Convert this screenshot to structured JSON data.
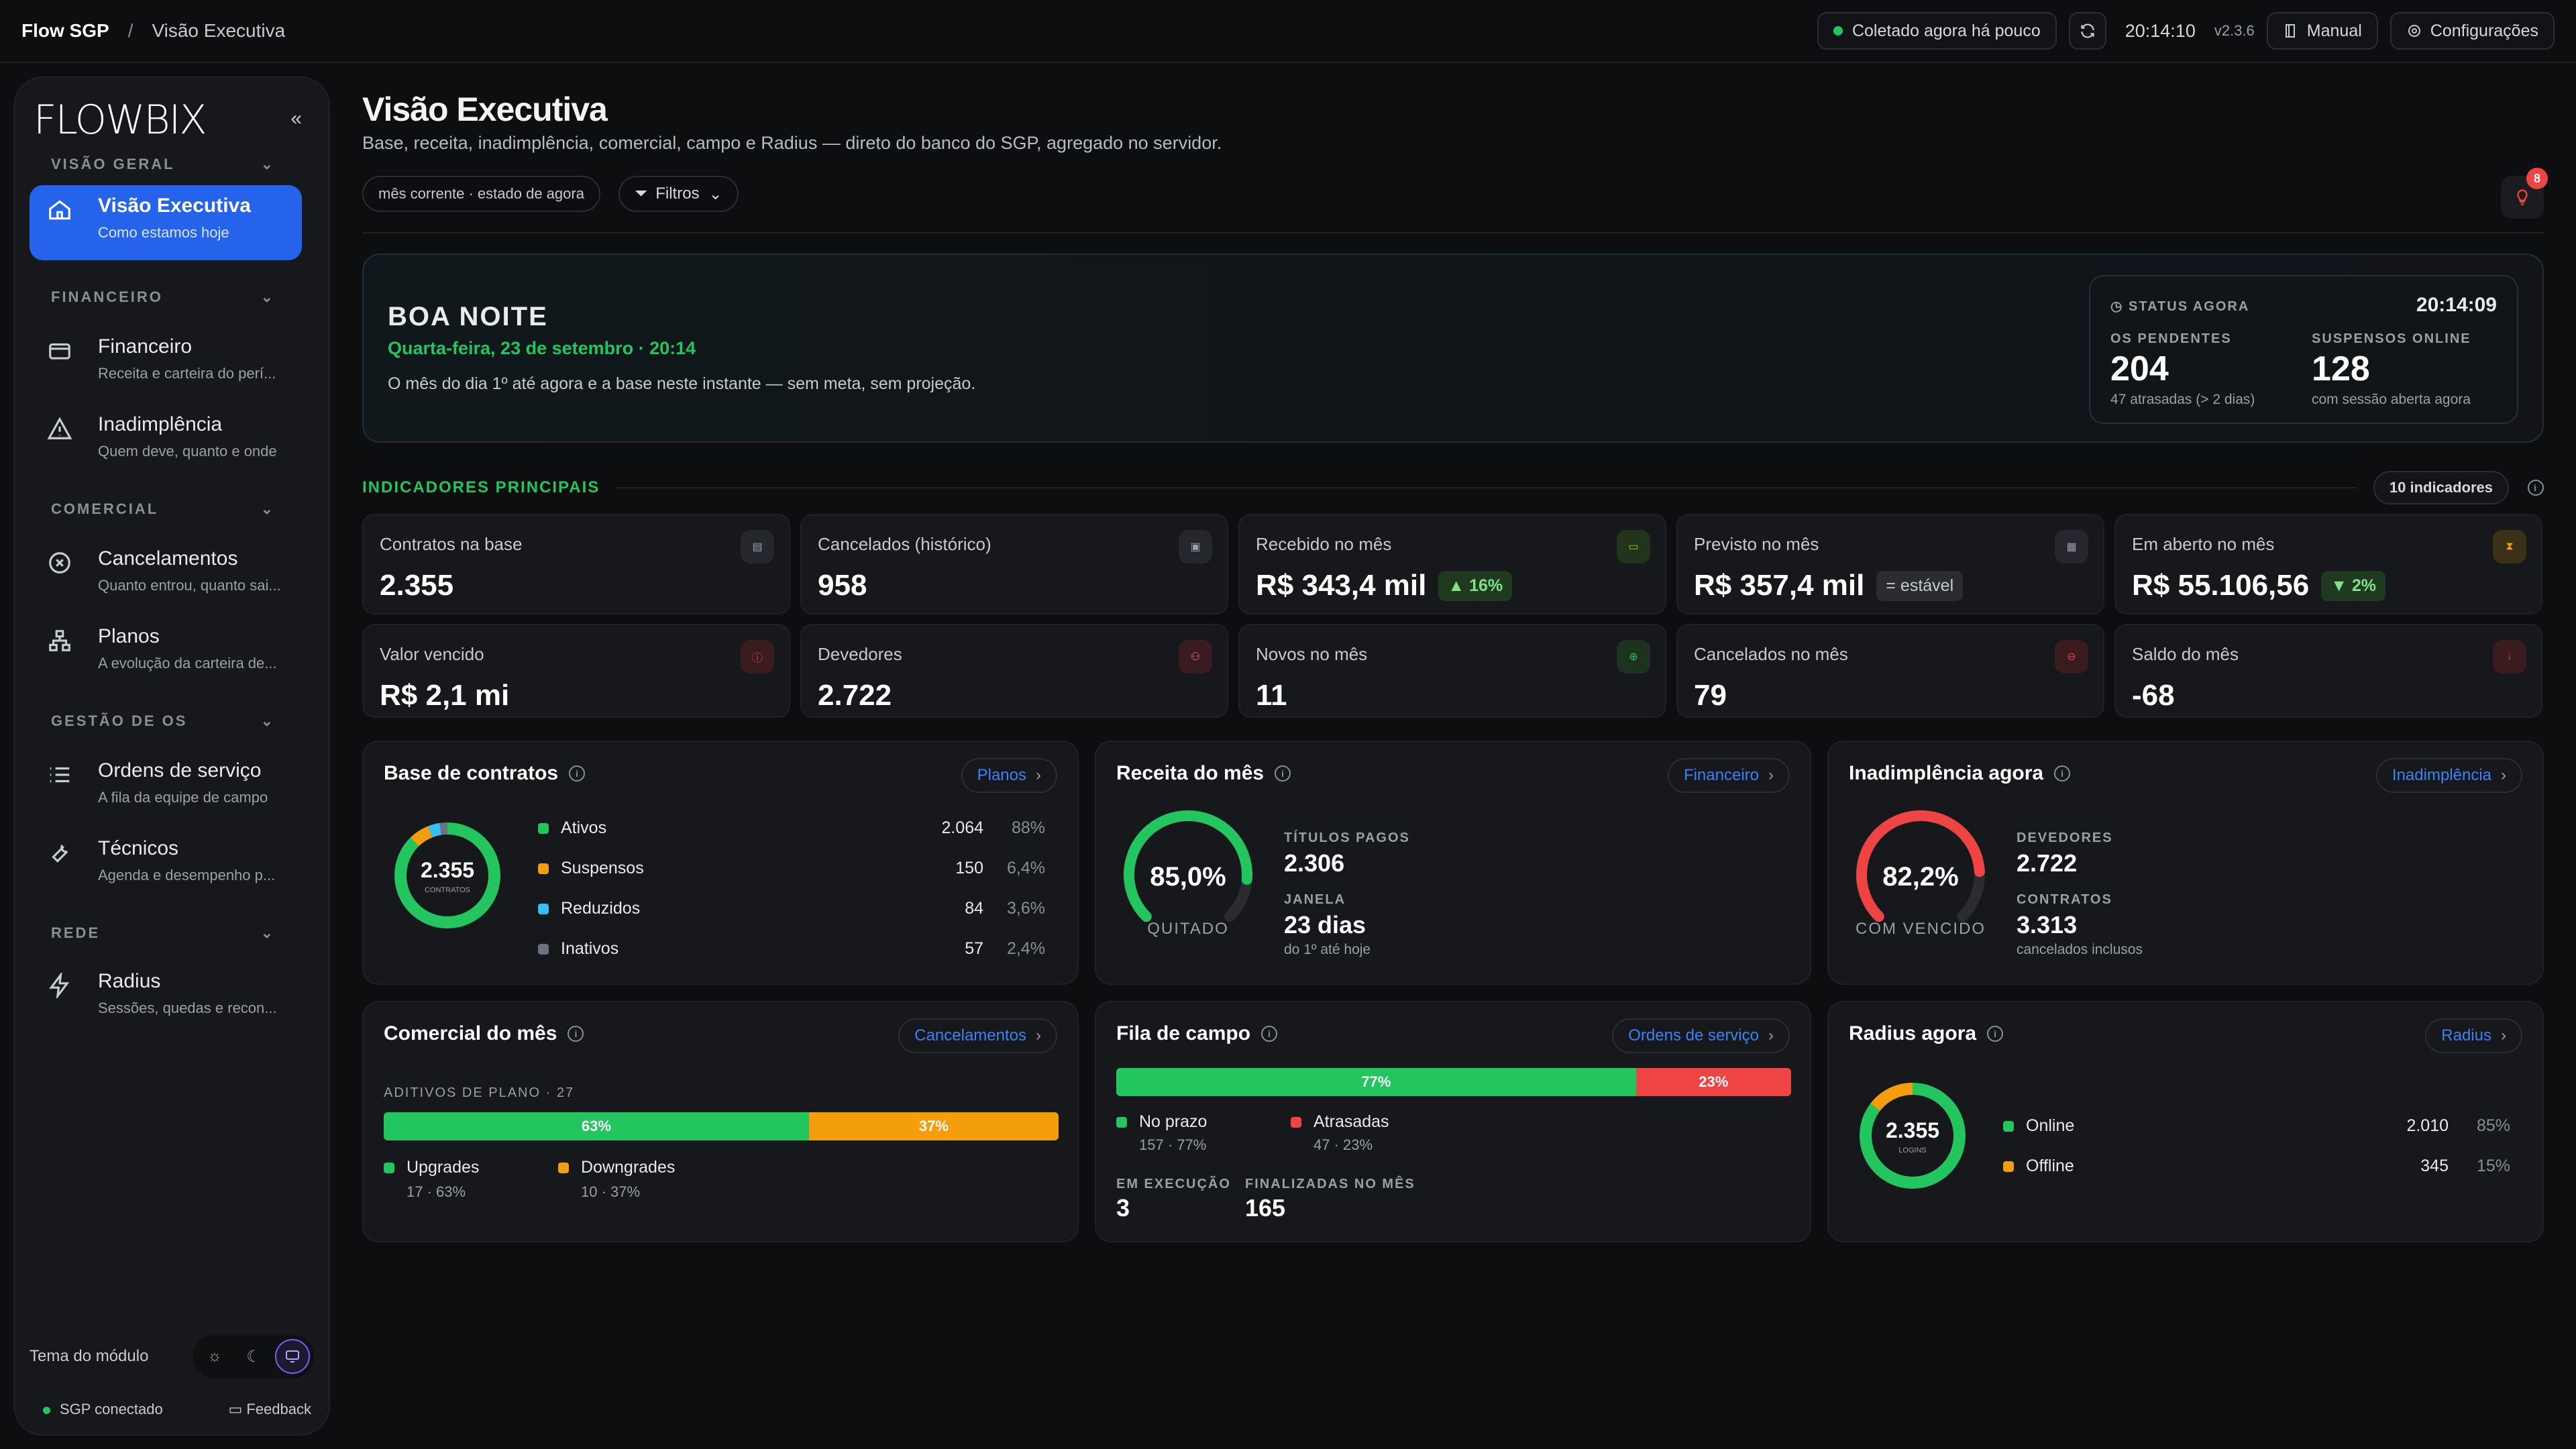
{
  "topbar": {
    "app": "Flow SGP",
    "separator": "/",
    "page": "Visão Executiva",
    "collected": "Coletado agora há pouco",
    "clock": "20:14:10",
    "version": "v2.3.6",
    "manual": "Manual",
    "settings": "Configurações"
  },
  "sidebar": {
    "logo": "FLOWBIX",
    "collapse": "«",
    "sections": {
      "visao": "VISÃO GERAL",
      "financeiro": "FINANCEIRO",
      "comercial": "COMERCIAL",
      "gestao": "GESTÃO DE OS",
      "rede": "REDE"
    },
    "items": [
      {
        "label": "Visão Executiva",
        "sub": "Como estamos hoje"
      },
      {
        "label": "Financeiro",
        "sub": "Receita e carteira do perí..."
      },
      {
        "label": "Inadimplência",
        "sub": "Quem deve, quanto e onde"
      },
      {
        "label": "Cancelamentos",
        "sub": "Quanto entrou, quanto sai..."
      },
      {
        "label": "Planos",
        "sub": "A evolução da carteira de..."
      },
      {
        "label": "Ordens de serviço",
        "sub": "A fila da equipe de campo"
      },
      {
        "label": "Técnicos",
        "sub": "Agenda e desempenho p..."
      },
      {
        "label": "Radius",
        "sub": "Sessões, quedas e recon..."
      }
    ],
    "theme_label": "Tema do módulo",
    "connected": "SGP conectado",
    "feedback": "Feedback"
  },
  "page": {
    "title": "Visão Executiva",
    "subtitle": "Base, receita, inadimplência, comercial, campo e Radius — direto do banco do SGP, agregado no servidor.",
    "period_chip": "mês corrente · estado de agora",
    "filters": "Filtros",
    "notif_count": "8"
  },
  "hero": {
    "greeting": "BOA NOITE",
    "date": "Quarta-feira, 23 de setembro · 20:14",
    "desc": "O mês do dia 1º até agora e a base neste instante — sem meta, sem projeção.",
    "status_label": "STATUS AGORA",
    "status_time": "20:14:09",
    "os_label": "OS PENDENTES",
    "os_value": "204",
    "os_sub": "47 atrasadas (> 2 dias)",
    "susp_label": "SUSPENSOS ONLINE",
    "susp_value": "128",
    "susp_sub": "com sessão aberta agora"
  },
  "indicators": {
    "title": "INDICADORES PRINCIPAIS",
    "count": "10 indicadores"
  },
  "kpis": [
    {
      "label": "Contratos na base",
      "value": "2.355",
      "tag": ""
    },
    {
      "label": "Cancelados (histórico)",
      "value": "958",
      "tag": ""
    },
    {
      "label": "Recebido no mês",
      "value": "R$ 343,4 mil",
      "tag": "▲ 16%"
    },
    {
      "label": "Previsto no mês",
      "value": "R$ 357,4 mil",
      "tag": "= estável"
    },
    {
      "label": "Em aberto no mês",
      "value": "R$ 55.106,56",
      "tag": "▼ 2%"
    },
    {
      "label": "Valor vencido",
      "value": "R$ 2,1 mi",
      "tag": ""
    },
    {
      "label": "Devedores",
      "value": "2.722",
      "tag": ""
    },
    {
      "label": "Novos no mês",
      "value": "11",
      "tag": ""
    },
    {
      "label": "Cancelados no mês",
      "value": "79",
      "tag": ""
    },
    {
      "label": "Saldo do mês",
      "value": "-68",
      "tag": ""
    }
  ],
  "base": {
    "title": "Base de contratos",
    "link": "Planos",
    "center": "2.355",
    "center_sub": "CONTRATOS",
    "rows": [
      {
        "name": "Ativos",
        "value": "2.064",
        "pct": "88%",
        "color": "#22c55e"
      },
      {
        "name": "Suspensos",
        "value": "150",
        "pct": "6,4%",
        "color": "#f59e0b"
      },
      {
        "name": "Reduzidos",
        "value": "84",
        "pct": "3,6%",
        "color": "#38bdf8"
      },
      {
        "name": "Inativos",
        "value": "57",
        "pct": "2,4%",
        "color": "#6b7280"
      }
    ]
  },
  "receita": {
    "title": "Receita do mês",
    "link": "Financeiro",
    "gauge": "85,0%",
    "gauge_fraction": 0.85,
    "gauge_label": "QUITADO",
    "m1_label": "TÍTULOS PAGOS",
    "m1_value": "2.306",
    "m2_label": "JANELA",
    "m2_value": "23 dias",
    "m2_sub": "do 1º até hoje"
  },
  "inad": {
    "title": "Inadimplência agora",
    "link": "Inadimplência",
    "gauge": "82,2%",
    "gauge_fraction": 0.822,
    "gauge_label": "COM VENCIDO",
    "m1_label": "DEVEDORES",
    "m1_value": "2.722",
    "m2_label": "CONTRATOS",
    "m2_value": "3.313",
    "m2_sub": "cancelados inclusos"
  },
  "comercial": {
    "title": "Comercial do mês",
    "link": "Cancelamentos",
    "label": "ADITIVOS DE PLANO · 27",
    "up_pct": "63%",
    "down_pct": "37%",
    "up_name": "Upgrades",
    "up_sub": "17 · 63%",
    "down_name": "Downgrades",
    "down_sub": "10 · 37%"
  },
  "fila": {
    "title": "Fila de campo",
    "link": "Ordens de serviço",
    "ok_pct": "77%",
    "late_pct": "23%",
    "ok_name": "No prazo",
    "ok_sub": "157 · 77%",
    "late_name": "Atrasadas",
    "late_sub": "47 · 23%",
    "exec_label": "EM EXECUÇÃO",
    "exec_value": "3",
    "done_label": "FINALIZADAS NO MÊS",
    "done_value": "165"
  },
  "radius": {
    "title": "Radius agora",
    "link": "Radius",
    "center": "2.355",
    "center_sub": "LOGINS",
    "rows": [
      {
        "name": "Online",
        "value": "2.010",
        "pct": "85%",
        "color": "#22c55e"
      },
      {
        "name": "Offline",
        "value": "345",
        "pct": "15%",
        "color": "#f59e0b"
      }
    ]
  },
  "colors": {
    "accent": "#2563eb",
    "green": "#22c55e",
    "amber": "#f59e0b",
    "red": "#ef4444",
    "blue": "#38bdf8"
  }
}
